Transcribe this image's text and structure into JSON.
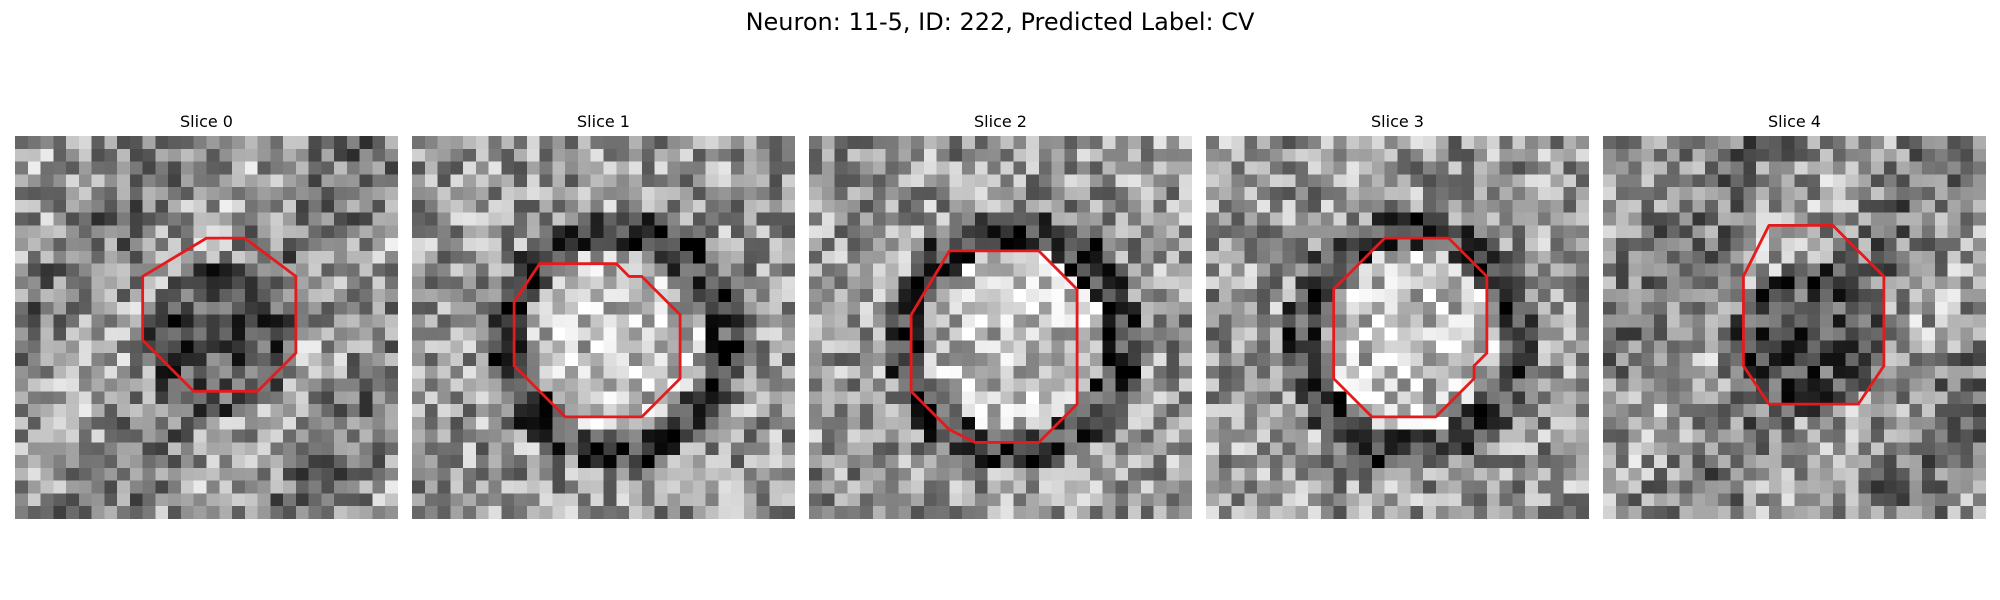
{
  "figure": {
    "title": "Neuron: 11-5, ID: 222, Predicted Label: CV",
    "colormap": "grayscale",
    "contour_color": "#e41a1c",
    "grid_size": 30
  },
  "slices": [
    {
      "title": "Slice 0",
      "pattern": "dark-center",
      "seed": 11,
      "contour": [
        [
          15,
          8
        ],
        [
          18,
          8
        ],
        [
          22,
          11
        ],
        [
          22,
          17
        ],
        [
          19,
          20
        ],
        [
          14,
          20
        ],
        [
          10,
          16
        ],
        [
          10,
          11
        ]
      ]
    },
    {
      "title": "Slice 1",
      "pattern": "bright-center",
      "seed": 23,
      "contour": [
        [
          10,
          10
        ],
        [
          16,
          10
        ],
        [
          17,
          11
        ],
        [
          18,
          11
        ],
        [
          21,
          14
        ],
        [
          21,
          19
        ],
        [
          18,
          22
        ],
        [
          12,
          22
        ],
        [
          8,
          18
        ],
        [
          8,
          13
        ]
      ]
    },
    {
      "title": "Slice 2",
      "pattern": "bright-ring",
      "seed": 37,
      "contour": [
        [
          11,
          9
        ],
        [
          18,
          9
        ],
        [
          21,
          12
        ],
        [
          21,
          21
        ],
        [
          18,
          24
        ],
        [
          13,
          24
        ],
        [
          11,
          23
        ],
        [
          8,
          20
        ],
        [
          8,
          14
        ]
      ]
    },
    {
      "title": "Slice 3",
      "pattern": "bright-ring",
      "seed": 41,
      "contour": [
        [
          14,
          8
        ],
        [
          19,
          8
        ],
        [
          22,
          11
        ],
        [
          22,
          17
        ],
        [
          21,
          18
        ],
        [
          21,
          19
        ],
        [
          18,
          22
        ],
        [
          13,
          22
        ],
        [
          10,
          19
        ],
        [
          10,
          12
        ]
      ]
    },
    {
      "title": "Slice 4",
      "pattern": "dark-center",
      "seed": 53,
      "contour": [
        [
          13,
          7
        ],
        [
          18,
          7
        ],
        [
          22,
          11
        ],
        [
          22,
          18
        ],
        [
          20,
          21
        ],
        [
          13,
          21
        ],
        [
          11,
          18
        ],
        [
          11,
          11
        ]
      ]
    }
  ]
}
